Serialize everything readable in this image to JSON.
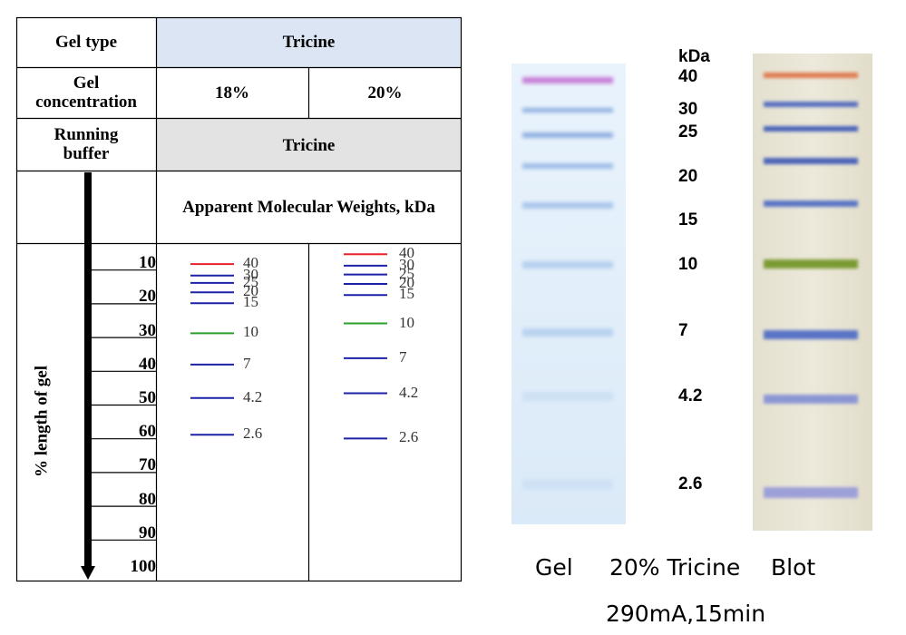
{
  "table": {
    "gel_type_label": "Gel type",
    "gel_type_value": "Tricine",
    "gel_conc_label": "Gel\nconcentration",
    "conc_18": "18%",
    "conc_20": "20%",
    "running_buffer_label": "Running\nbuffer",
    "running_buffer_value": "Tricine",
    "mw_header": "Apparent Molecular Weights, kDa",
    "axis_label": "% length of gel",
    "ticks": [
      "10",
      "20",
      "30",
      "40",
      "50",
      "60",
      "70",
      "80",
      "90",
      "100"
    ]
  },
  "ladder_18": [
    {
      "label": "40",
      "pct": 6.2,
      "color": "#e8232a"
    },
    {
      "label": "30",
      "pct": 9.6,
      "color": "#1c22a8"
    },
    {
      "label": "25",
      "pct": 11.8,
      "color": "#1c22a8"
    },
    {
      "label": "20",
      "pct": 14.6,
      "color": "#1c22a8"
    },
    {
      "label": "15",
      "pct": 17.8,
      "color": "#1c22a8"
    },
    {
      "label": "10",
      "pct": 26.7,
      "color": "#2aa02a"
    },
    {
      "label": "7",
      "pct": 36.0,
      "color": "#1c22a8"
    },
    {
      "label": "4.2",
      "pct": 45.9,
      "color": "#1c22a8"
    },
    {
      "label": "2.6",
      "pct": 56.8,
      "color": "#1c22a8"
    }
  ],
  "ladder_20": [
    {
      "label": "40",
      "pct": 3.3,
      "color": "#e8232a"
    },
    {
      "label": "30",
      "pct": 6.7,
      "color": "#1c22a8"
    },
    {
      "label": "25",
      "pct": 9.3,
      "color": "#1c22a8"
    },
    {
      "label": "20",
      "pct": 12.1,
      "color": "#1c22a8"
    },
    {
      "label": "15",
      "pct": 15.4,
      "color": "#1c22a8"
    },
    {
      "label": "10",
      "pct": 23.8,
      "color": "#2aa02a"
    },
    {
      "label": "7",
      "pct": 34.1,
      "color": "#1c22a8"
    },
    {
      "label": "4.2",
      "pct": 44.5,
      "color": "#1c22a8"
    },
    {
      "label": "2.6",
      "pct": 57.9,
      "color": "#1c22a8"
    }
  ],
  "kda_label": "kDa",
  "marker_labels": [
    "40",
    "30",
    "25",
    "20",
    "15",
    "10",
    "7",
    "4.2",
    "2.6"
  ],
  "captions": {
    "gel": "Gel",
    "tricine": "20% Tricine",
    "blot": "Blot",
    "conditions": "290mA,15min"
  },
  "colors": {
    "header_blue": "#dbe5f4",
    "header_gray": "#e3e3e3",
    "red": "#e8232a",
    "blue": "#1c22a8",
    "green": "#2aa02a"
  }
}
